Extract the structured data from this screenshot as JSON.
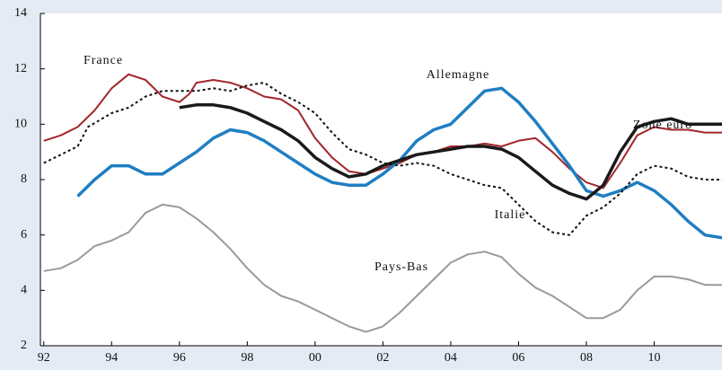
{
  "chart_data": {
    "type": "line",
    "xlim": [
      1991.9,
      2012
    ],
    "xticks": [
      {
        "value": 1992,
        "label": "92"
      },
      {
        "value": 1994,
        "label": "94"
      },
      {
        "value": 1996,
        "label": "96"
      },
      {
        "value": 1998,
        "label": "98"
      },
      {
        "value": 2000,
        "label": "00"
      },
      {
        "value": 2002,
        "label": "02"
      },
      {
        "value": 2004,
        "label": "04"
      },
      {
        "value": 2006,
        "label": "06"
      },
      {
        "value": 2008,
        "label": "08"
      },
      {
        "value": 2010,
        "label": "10"
      }
    ],
    "ylim": [
      2,
      14
    ],
    "yticks": [
      2,
      4,
      6,
      8,
      10,
      12,
      14
    ],
    "series": [
      {
        "name": "France",
        "color": "#a3262b",
        "style": "solid",
        "x": [
          1992,
          1992.5,
          1993,
          1993.5,
          1994,
          1994.5,
          1995,
          1995.5,
          1996,
          1996.3,
          1996.5,
          1997,
          1997.5,
          1998,
          1998.5,
          1999,
          1999.5,
          2000,
          2000.5,
          2001,
          2001.5,
          2002,
          2002.5,
          2003,
          2003.5,
          2004,
          2004.5,
          2005,
          2005.5,
          2006,
          2006.5,
          2007,
          2007.5,
          2008,
          2008.5,
          2009,
          2009.5,
          2010,
          2010.5,
          2011,
          2011.5,
          2012
        ],
        "values": [
          9.4,
          9.6,
          9.9,
          10.5,
          11.3,
          11.8,
          11.6,
          11.0,
          10.8,
          11.1,
          11.5,
          11.6,
          11.5,
          11.3,
          11.0,
          10.9,
          10.5,
          9.5,
          8.8,
          8.3,
          8.2,
          8.4,
          8.6,
          8.9,
          9.0,
          9.2,
          9.2,
          9.3,
          9.2,
          9.4,
          9.5,
          9.0,
          8.4,
          7.9,
          7.7,
          8.6,
          9.6,
          9.9,
          9.8,
          9.8,
          9.7,
          9.7
        ]
      },
      {
        "name": "Allemagne",
        "color": "#1f7ec2",
        "style": "thick",
        "x": [
          1993,
          1993.5,
          1994,
          1994.5,
          1995,
          1995.5,
          1996,
          1996.5,
          1997,
          1997.5,
          1998,
          1998.5,
          1999,
          1999.5,
          2000,
          2000.5,
          2001,
          2001.5,
          2002,
          2002.5,
          2003,
          2003.5,
          2004,
          2004.5,
          2005,
          2005.5,
          2006,
          2006.5,
          2007,
          2007.5,
          2008,
          2008.5,
          2009,
          2009.5,
          2010,
          2010.5,
          2011,
          2011.5,
          2012
        ],
        "values": [
          7.4,
          8.0,
          8.5,
          8.5,
          8.2,
          8.2,
          8.6,
          9.0,
          9.5,
          9.8,
          9.7,
          9.4,
          9.0,
          8.6,
          8.2,
          7.9,
          7.8,
          7.8,
          8.2,
          8.7,
          9.4,
          9.8,
          10.0,
          10.6,
          11.2,
          11.3,
          10.8,
          10.1,
          9.3,
          8.5,
          7.6,
          7.4,
          7.6,
          7.9,
          7.6,
          7.1,
          6.5,
          6.0,
          5.9
        ]
      },
      {
        "name": "Zone euro",
        "color": "#1a1a1a",
        "style": "thick",
        "x": [
          1996,
          1996.5,
          1997,
          1997.5,
          1998,
          1998.5,
          1999,
          1999.5,
          2000,
          2000.5,
          2001,
          2001.5,
          2002,
          2002.5,
          2003,
          2003.5,
          2004,
          2004.5,
          2005,
          2005.5,
          2006,
          2006.5,
          2007,
          2007.5,
          2008,
          2008.5,
          2009,
          2009.5,
          2010,
          2010.5,
          2011,
          2011.5,
          2012
        ],
        "values": [
          10.6,
          10.7,
          10.7,
          10.6,
          10.4,
          10.1,
          9.8,
          9.4,
          8.8,
          8.4,
          8.1,
          8.2,
          8.5,
          8.7,
          8.9,
          9.0,
          9.1,
          9.2,
          9.2,
          9.1,
          8.8,
          8.3,
          7.8,
          7.5,
          7.3,
          7.8,
          9.0,
          9.9,
          10.1,
          10.2,
          10.0,
          10.0,
          10.0
        ]
      },
      {
        "name": "Italie",
        "color": "#111111",
        "style": "dotted",
        "x": [
          1992,
          1992.5,
          1993,
          1993.3,
          1994,
          1994.5,
          1995,
          1995.5,
          1996,
          1996.5,
          1997,
          1997.5,
          1998,
          1998.5,
          1999,
          1999.5,
          2000,
          2000.5,
          2001,
          2001.5,
          2002,
          2002.5,
          2003,
          2003.5,
          2004,
          2004.5,
          2005,
          2005.5,
          2006,
          2006.5,
          2007,
          2007.5,
          2008,
          2008.5,
          2009,
          2009.5,
          2010,
          2010.5,
          2011,
          2011.5,
          2012
        ],
        "values": [
          8.6,
          8.9,
          9.2,
          9.9,
          10.4,
          10.6,
          11.0,
          11.2,
          11.2,
          11.2,
          11.3,
          11.2,
          11.4,
          11.5,
          11.1,
          10.8,
          10.4,
          9.7,
          9.1,
          8.9,
          8.6,
          8.5,
          8.6,
          8.5,
          8.2,
          8.0,
          7.8,
          7.7,
          7.1,
          6.5,
          6.1,
          6.0,
          6.7,
          7.0,
          7.5,
          8.2,
          8.5,
          8.4,
          8.1,
          8.0,
          8.0
        ]
      },
      {
        "name": "Pays-Bas",
        "color": "#9a9a9a",
        "style": "solid",
        "x": [
          1992,
          1992.5,
          1993,
          1993.5,
          1994,
          1994.5,
          1995,
          1995.5,
          1996,
          1996.5,
          1997,
          1997.5,
          1998,
          1998.5,
          1999,
          1999.5,
          2000,
          2000.5,
          2001,
          2001.5,
          2002,
          2002.5,
          2003,
          2003.5,
          2004,
          2004.5,
          2005,
          2005.5,
          2006,
          2006.5,
          2007,
          2007.5,
          2008,
          2008.5,
          2009,
          2009.5,
          2010,
          2010.5,
          2011,
          2011.5,
          2012
        ],
        "values": [
          4.7,
          4.8,
          5.1,
          5.6,
          5.8,
          6.1,
          6.8,
          7.1,
          7.0,
          6.6,
          6.1,
          5.5,
          4.8,
          4.2,
          3.8,
          3.6,
          3.3,
          3.0,
          2.7,
          2.5,
          2.7,
          3.2,
          3.8,
          4.4,
          5.0,
          5.3,
          5.4,
          5.2,
          4.6,
          4.1,
          3.8,
          3.4,
          3.0,
          3.0,
          3.3,
          4.0,
          4.5,
          4.5,
          4.4,
          4.2,
          4.2
        ]
      }
    ]
  }
}
